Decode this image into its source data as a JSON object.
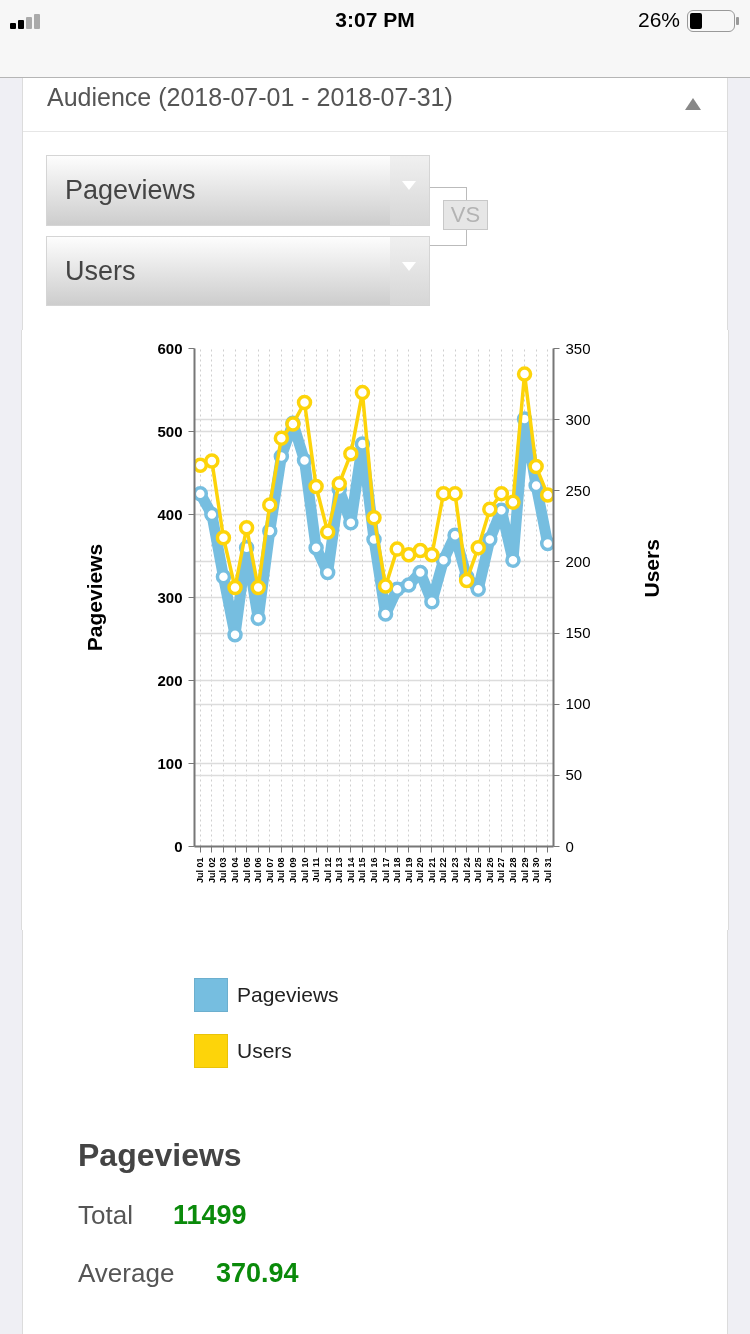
{
  "chart_data": {
    "type": "line",
    "title": "Audience (2018-07-01 - 2018-07-31)",
    "ylabel": "Pageviews",
    "y2label": "Users",
    "categories": [
      "Jul 01",
      "Jul 02",
      "Jul 03",
      "Jul 04",
      "Jul 05",
      "Jul 06",
      "Jul 07",
      "Jul 08",
      "Jul 09",
      "Jul 10",
      "Jul 11",
      "Jul 12",
      "Jul 13",
      "Jul 14",
      "Jul 15",
      "Jul 16",
      "Jul 17",
      "Jul 18",
      "Jul 19",
      "Jul 20",
      "Jul 21",
      "Jul 22",
      "Jul 23",
      "Jul 24",
      "Jul 25",
      "Jul 26",
      "Jul 27",
      "Jul 28",
      "Jul 29",
      "Jul 30",
      "Jul 31"
    ],
    "series": [
      {
        "name": "Pageviews",
        "color": "#76bee0",
        "values": [
          425,
          400,
          325,
          255,
          360,
          275,
          380,
          470,
          510,
          465,
          360,
          330,
          430,
          390,
          485,
          370,
          280,
          310,
          315,
          330,
          295,
          345,
          375,
          325,
          310,
          370,
          405,
          345,
          515,
          435,
          365
        ]
      },
      {
        "name": "Users",
        "color": "#fdd40a",
        "axis": "y2",
        "values": [
          268,
          271,
          217,
          182,
          224,
          182,
          240,
          287,
          297,
          312,
          253,
          221,
          255,
          276,
          319,
          231,
          183,
          209,
          205,
          208,
          205,
          248,
          248,
          187,
          210,
          237,
          248,
          242,
          332,
          267,
          247
        ]
      }
    ],
    "ylim": [
      0,
      600
    ],
    "yticks": [
      0,
      100,
      200,
      300,
      400,
      500,
      600
    ],
    "y2lim": [
      0,
      350
    ],
    "y2ticks": [
      0,
      50,
      100,
      150,
      200,
      250,
      300,
      350
    ],
    "grid": true,
    "legend": "bottom",
    "marker": "circle",
    "line_style": "solid",
    "annotations": [
      "3:07 PM",
      "26%",
      "Pageviews",
      "VS",
      "Users",
      "Pageviews",
      "Total",
      "11499",
      "Average",
      "370.94"
    ]
  }
}
